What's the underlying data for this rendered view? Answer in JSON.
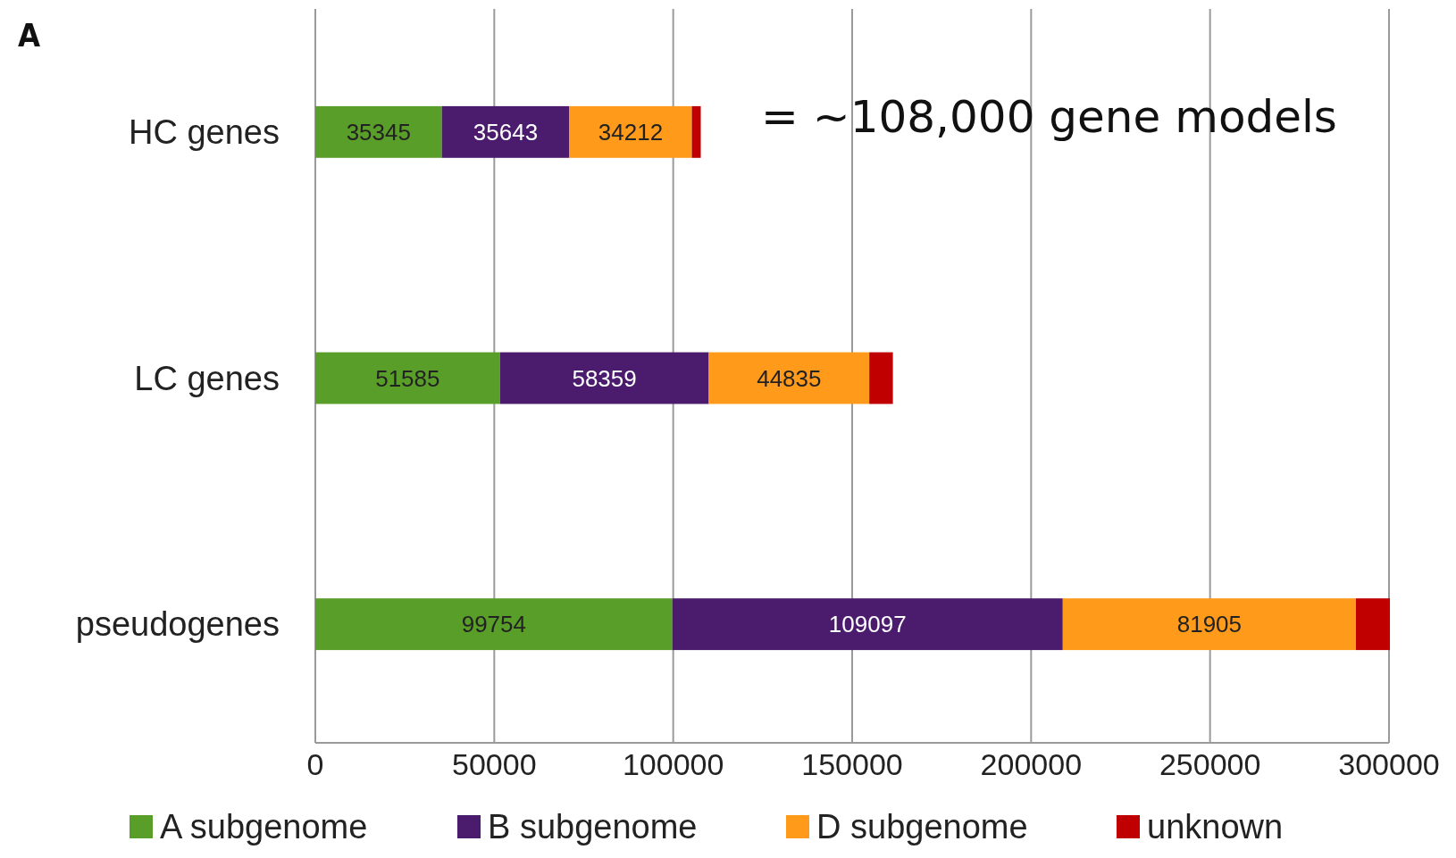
{
  "chart_data": {
    "type": "bar",
    "orientation": "horizontal",
    "stacked": true,
    "categories": [
      "HC genes",
      "LC genes",
      "pseudogenes"
    ],
    "series": [
      {
        "name": "A subgenome",
        "color": "#5a9e2a",
        "values": [
          35345,
          51585,
          99754
        ],
        "value_labels": [
          "35345",
          "51585",
          "99754"
        ]
      },
      {
        "name": "B subgenome",
        "color": "#4b1c6e",
        "values": [
          35643,
          58359,
          109097
        ],
        "value_labels": [
          "35643",
          "58359",
          "109097"
        ]
      },
      {
        "name": "D subgenome",
        "color": "#ff9a1a",
        "values": [
          34212,
          44835,
          81905
        ],
        "value_labels": [
          "34212",
          "44835",
          "81905"
        ]
      },
      {
        "name": "unknown",
        "color": "#c00000",
        "values": [
          2500,
          6600,
          9500
        ],
        "value_labels": [
          null,
          null,
          null
        ]
      }
    ],
    "xlim": [
      0,
      300000
    ],
    "xticks": [
      0,
      50000,
      100000,
      150000,
      200000,
      250000,
      300000
    ],
    "grid": "x",
    "legend": "bottom",
    "annotations": [
      "A",
      "= ~108,000 gene models"
    ]
  }
}
